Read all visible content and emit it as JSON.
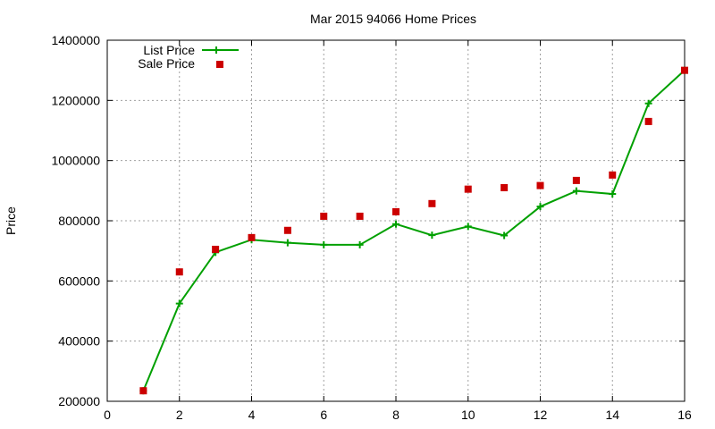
{
  "chart_data": {
    "type": "line",
    "title": "Mar 2015 94066 Home Prices",
    "xlabel": "",
    "ylabel": "Price",
    "xlim": [
      0,
      16
    ],
    "ylim": [
      200000,
      1400000
    ],
    "xticks": [
      0,
      2,
      4,
      6,
      8,
      10,
      12,
      14,
      16
    ],
    "yticks": [
      200000,
      400000,
      600000,
      800000,
      1000000,
      1200000,
      1400000
    ],
    "grid": true,
    "legend_position": "top-left",
    "x": [
      1,
      2,
      3,
      4,
      5,
      6,
      7,
      8,
      9,
      10,
      11,
      12,
      13,
      14,
      15,
      16
    ],
    "series": [
      {
        "name": "List Price",
        "style": "linespoints",
        "marker": "plus",
        "color": "#00a000",
        "values": [
          235000,
          525000,
          695000,
          737000,
          727000,
          720000,
          720000,
          789000,
          752000,
          781000,
          751000,
          847000,
          899000,
          889000,
          1190000,
          1300000
        ]
      },
      {
        "name": "Sale Price",
        "style": "points",
        "marker": "square",
        "color": "#cc0000",
        "values": [
          235000,
          630000,
          705000,
          744000,
          768000,
          815000,
          815000,
          830000,
          857000,
          905000,
          910000,
          917000,
          934000,
          952000,
          1130000,
          1300000
        ]
      }
    ]
  }
}
